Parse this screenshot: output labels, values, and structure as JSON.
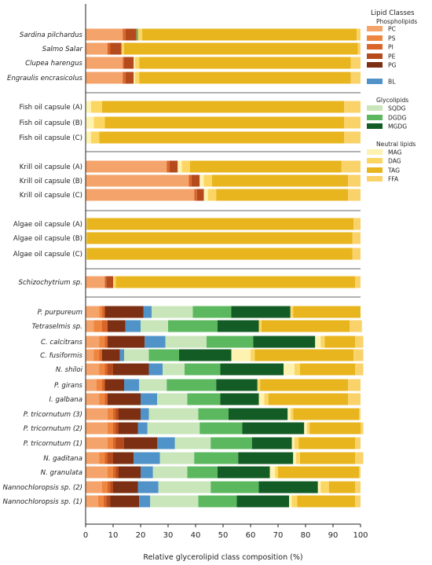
{
  "chart_data": {
    "type": "bar",
    "orientation": "horizontal",
    "stacked": true,
    "xlabel": "Relative glycerolipid class composition (%)",
    "xlim": [
      0,
      100
    ],
    "xticks": [
      0,
      10,
      20,
      30,
      40,
      50,
      60,
      70,
      80,
      90,
      100
    ],
    "legend": {
      "title": "Lipid Classes",
      "placement": "right",
      "groups": [
        {
          "title": "Phospholipids",
          "items": [
            "PC",
            "PS",
            "PI",
            "PE",
            "PG"
          ]
        },
        {
          "title": "",
          "items": [
            "BL"
          ]
        },
        {
          "title": "Glycolipids",
          "items": [
            "SQDG",
            "DGDG",
            "MGDG"
          ]
        },
        {
          "title": "Neutral lipids",
          "items": [
            "MAG",
            "DAG",
            "TAG",
            "FFA"
          ]
        }
      ]
    },
    "classes": [
      "PC",
      "PS",
      "PI",
      "PE",
      "PG",
      "BL",
      "SQDG",
      "DGDG",
      "MGDG",
      "MAG",
      "DAG",
      "TAG",
      "FFA"
    ],
    "colors": {
      "PC": "#f4a36a",
      "PS": "#ef8640",
      "PI": "#d9652a",
      "PE": "#b54a1c",
      "PG": "#7c2f12",
      "BL": "#4f93c8",
      "SQDG": "#c9e6bb",
      "DGDG": "#5cb85f",
      "MGDG": "#145c25",
      "MAG": "#fdf2b0",
      "DAG": "#fcd663",
      "TAG": "#e8b51e",
      "FFA": "#fad26a"
    },
    "groups": [
      {
        "rows": [
          {
            "label": "Sardina pilchardus",
            "italic": true,
            "values": [
              13.5,
              0,
              1,
              4,
              0,
              0,
              0,
              0.6,
              0,
              0,
              1.5,
              78,
              1.4
            ]
          },
          {
            "label": "Salmo Salar",
            "italic": true,
            "values": [
              8,
              0,
              1,
              4,
              0,
              0,
              0,
              0,
              0,
              0,
              1,
              85,
              1
            ]
          },
          {
            "label": "Clupea harengus",
            "italic": true,
            "values": [
              13.5,
              0,
              0.5,
              3.5,
              0,
              0,
              0,
              0,
              0,
              0.5,
              1.5,
              77,
              3.5
            ]
          },
          {
            "label": "Engraulis encrasicolus",
            "italic": true,
            "values": [
              13.5,
              0,
              1,
              3,
              0,
              0,
              0,
              0,
              0,
              0.5,
              1.5,
              77,
              3.5
            ]
          }
        ]
      },
      {
        "rows": [
          {
            "label": "Fish oil capsule (A)",
            "italic": false,
            "values": [
              0,
              0,
              0,
              0,
              0,
              0,
              0,
              0,
              0,
              2,
              4,
              88,
              6
            ]
          },
          {
            "label": "Fish oil capsule (B)",
            "italic": false,
            "values": [
              0,
              0,
              0,
              0,
              0,
              0,
              0,
              0,
              0,
              3,
              4,
              87,
              6
            ]
          },
          {
            "label": "Fish oil capsule (C)",
            "italic": false,
            "values": [
              0,
              0,
              0,
              0,
              0,
              0,
              0,
              0,
              0,
              2,
              3,
              89,
              6
            ]
          }
        ]
      },
      {
        "rows": [
          {
            "label": "Krill oil capsule (A)",
            "italic": false,
            "values": [
              29.5,
              0,
              1,
              3,
              0,
              0,
              0,
              0,
              0,
              1.5,
              3,
              55,
              7
            ]
          },
          {
            "label": "Krill oil capsule (B)",
            "italic": false,
            "values": [
              37.5,
              0,
              1,
              3,
              0,
              0,
              0,
              0,
              0,
              1.5,
              3,
              49.5,
              4.5
            ]
          },
          {
            "label": "Krill oil capsule (C)",
            "italic": false,
            "values": [
              39.5,
              0,
              1,
              2.5,
              0,
              0,
              0,
              0,
              0,
              1.5,
              3,
              48,
              4.5
            ]
          }
        ]
      },
      {
        "rows": [
          {
            "label": "Algae oil capsule (A)",
            "italic": false,
            "values": [
              0,
              0,
              0,
              0,
              0,
              0,
              0,
              0,
              0,
              0,
              0.5,
              97,
              2.5
            ]
          },
          {
            "label": "Algae oil capsule (B)",
            "italic": false,
            "values": [
              0,
              0,
              0,
              0,
              0,
              0,
              0,
              0,
              0,
              0,
              0.5,
              96.5,
              3
            ]
          },
          {
            "label": "Algae oil capsule (C)",
            "italic": false,
            "values": [
              0,
              0,
              0,
              0,
              0,
              0,
              0,
              0,
              0,
              0,
              0.5,
              96.5,
              3
            ]
          }
        ]
      },
      {
        "rows": [
          {
            "label": "Schizochytrium sp.",
            "italic": true,
            "values": [
              7,
              0,
              0.5,
              2.5,
              0,
              0,
              0,
              0,
              0,
              0,
              1,
              87,
              2
            ]
          }
        ]
      },
      {
        "rows": [
          {
            "label": "P. purpureum",
            "italic": true,
            "values": [
              5,
              1,
              1,
              0,
              14,
              3,
              15,
              14,
              21.5,
              0,
              1,
              24.5,
              0
            ]
          },
          {
            "label": "Tetraselmis sp.",
            "italic": true,
            "values": [
              3,
              3,
              2,
              0,
              6.5,
              5.5,
              10,
              18,
              15,
              0,
              1,
              32,
              4.5
            ]
          },
          {
            "label": "C. calcitrans",
            "italic": true,
            "values": [
              5,
              2,
              1,
              0,
              13.5,
              7.5,
              15,
              17,
              22.5,
              2,
              1.5,
              11,
              3
            ]
          },
          {
            "label": "C. fusiformis",
            "italic": true,
            "values": [
              3,
              2,
              1,
              0,
              6.5,
              1.5,
              9,
              11,
              19,
              7,
              1.5,
              36,
              3.5
            ]
          },
          {
            "label": "N. shiloi",
            "italic": true,
            "values": [
              5,
              2,
              1,
              2,
              13,
              5,
              8,
              13,
              23,
              4,
              2,
              20,
              3
            ]
          },
          {
            "label": "P. girans",
            "italic": true,
            "values": [
              4,
              2,
              1,
              0,
              7,
              5.5,
              10,
              18,
              15,
              0,
              1,
              32,
              4.5
            ]
          },
          {
            "label": "I. galbana",
            "italic": true,
            "values": [
              5,
              2,
              1,
              0,
              12,
              6,
              11,
              12,
              14,
              2,
              1.5,
              29,
              4.5
            ]
          },
          {
            "label": "P. tricornutum (3)",
            "italic": true,
            "values": [
              8,
              2,
              1,
              1,
              8,
              3,
              18,
              11,
              21.5,
              1,
              1,
              24,
              0.5
            ]
          },
          {
            "label": "P. tricornutum (2)",
            "italic": true,
            "values": [
              8,
              2,
              1,
              1,
              7,
              3.5,
              19,
              15.5,
              22.5,
              1,
              1,
              18.5,
              1
            ]
          },
          {
            "label": "P. tricornutum (1)",
            "italic": true,
            "values": [
              8,
              2,
              1,
              3,
              12,
              6.5,
              13,
              15,
              14.5,
              1,
              1.5,
              20.5,
              2
            ]
          },
          {
            "label": "N. gaditana",
            "italic": true,
            "values": [
              5,
              2,
              1,
              2,
              7.5,
              9.5,
              12.5,
              16,
              20,
              1,
              1.5,
              20,
              3
            ]
          },
          {
            "label": "N. granulata",
            "italic": true,
            "values": [
              8,
              2,
              1,
              1,
              8,
              4.5,
              12.5,
              11,
              19,
              2,
              1,
              29.5,
              0.5
            ]
          },
          {
            "label": "Nannochloropsis sp. (2)",
            "italic": true,
            "values": [
              6,
              2,
              1,
              1,
              9,
              7.5,
              19,
              17.5,
              21.5,
              1,
              3,
              9.5,
              2
            ]
          },
          {
            "label": "Nannochloropsis sp. (1)",
            "italic": true,
            "values": [
              4.5,
              2,
              1,
              1.5,
              10.5,
              4,
              17.5,
              14,
              19,
              1,
              2,
              21,
              2
            ]
          }
        ]
      }
    ]
  }
}
